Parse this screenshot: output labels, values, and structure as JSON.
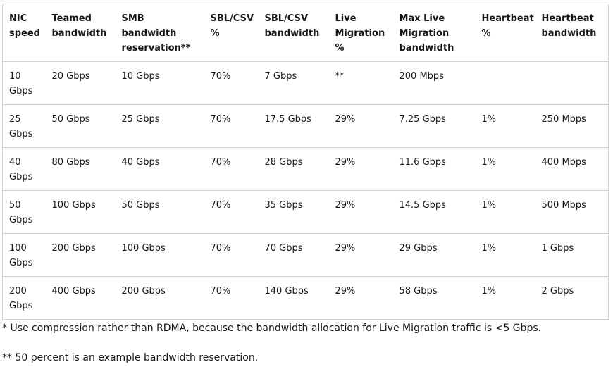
{
  "table": {
    "headers": [
      "NIC speed",
      "Teamed bandwidth",
      "SMB bandwidth reservation**",
      "SBL/CSV %",
      "SBL/CSV bandwidth",
      "Live Migration %",
      "Max Live Migration bandwidth",
      "Heartbeat %",
      "Heartbeat bandwidth"
    ],
    "rows": [
      [
        "10 Gbps",
        "20 Gbps",
        "10 Gbps",
        "70%",
        "7 Gbps",
        "**",
        "200 Mbps",
        "",
        ""
      ],
      [
        "25 Gbps",
        "50 Gbps",
        "25 Gbps",
        "70%",
        "17.5 Gbps",
        "29%",
        "7.25 Gbps",
        "1%",
        "250 Mbps"
      ],
      [
        "40 Gbps",
        "80 Gbps",
        "40 Gbps",
        "70%",
        "28 Gbps",
        "29%",
        "11.6 Gbps",
        "1%",
        "400 Mbps"
      ],
      [
        "50 Gbps",
        "100 Gbps",
        "50 Gbps",
        "70%",
        "35 Gbps",
        "29%",
        "14.5 Gbps",
        "1%",
        "500 Mbps"
      ],
      [
        "100 Gbps",
        "200 Gbps",
        "100 Gbps",
        "70%",
        "70 Gbps",
        "29%",
        "29 Gbps",
        "1%",
        "1 Gbps"
      ],
      [
        "200 Gbps",
        "400 Gbps",
        "200 Gbps",
        "70%",
        "140 Gbps",
        "29%",
        "58 Gbps",
        "1%",
        "2 Gbps"
      ]
    ]
  },
  "notes": [
    "* Use compression rather than RDMA, because the bandwidth allocation for Live Migration traffic is <5 Gbps.",
    "** 50 percent is an example bandwidth reservation."
  ]
}
